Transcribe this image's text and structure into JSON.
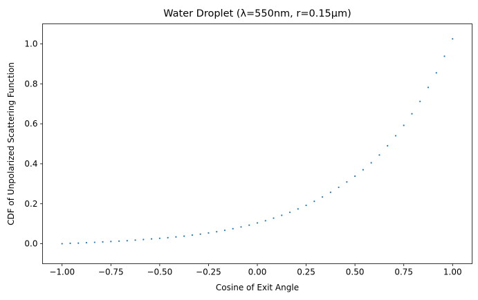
{
  "chart_data": {
    "type": "scatter",
    "title": "Water Droplet (λ=550nm, r=0.15μm)",
    "xlabel": "Cosine of Exit Angle",
    "ylabel": "CDF of Unpolarized Scattering Function",
    "xlim": [
      -1.1,
      1.1
    ],
    "ylim": [
      -0.1,
      1.1
    ],
    "x_ticks": [
      -1.0,
      -0.75,
      -0.5,
      -0.25,
      0.0,
      0.25,
      0.5,
      0.75,
      1.0
    ],
    "x_tick_labels": [
      "−1.00",
      "−0.75",
      "−0.50",
      "−0.25",
      "0.00",
      "0.25",
      "0.50",
      "0.75",
      "1.00"
    ],
    "y_ticks": [
      0.0,
      0.2,
      0.4,
      0.6,
      0.8,
      1.0
    ],
    "y_tick_labels": [
      "0.0",
      "0.2",
      "0.4",
      "0.6",
      "0.8",
      "1.0"
    ],
    "grid": false,
    "marker_color": "#1f77b4",
    "series": [
      {
        "x": [
          -1.0,
          -0.9583,
          -0.9167,
          -0.875,
          -0.8333,
          -0.7917,
          -0.75,
          -0.7083,
          -0.6667,
          -0.625,
          -0.5833,
          -0.5417,
          -0.5,
          -0.4583,
          -0.4167,
          -0.375,
          -0.3333,
          -0.2917,
          -0.25,
          -0.2083,
          -0.1667,
          -0.125,
          -0.0833,
          -0.0417,
          0.0,
          0.0417,
          0.0833,
          0.125,
          0.1667,
          0.2083,
          0.25,
          0.2917,
          0.3333,
          0.375,
          0.4167,
          0.4583,
          0.5,
          0.5417,
          0.5833,
          0.625,
          0.6667,
          0.7083,
          0.75,
          0.7917,
          0.8333,
          0.875,
          0.9167,
          0.9583,
          1.0
        ],
        "y": [
          0.0,
          0.002,
          0.003,
          0.005,
          0.007,
          0.009,
          0.011,
          0.013,
          0.015,
          0.018,
          0.021,
          0.024,
          0.027,
          0.03,
          0.034,
          0.038,
          0.043,
          0.048,
          0.054,
          0.06,
          0.067,
          0.075,
          0.084,
          0.093,
          0.104,
          0.115,
          0.128,
          0.142,
          0.157,
          0.174,
          0.192,
          0.212,
          0.234,
          0.257,
          0.282,
          0.309,
          0.338,
          0.37,
          0.405,
          0.444,
          0.49,
          0.54,
          0.592,
          0.65,
          0.712,
          0.782,
          0.855,
          0.938,
          1.025
        ]
      }
    ]
  }
}
